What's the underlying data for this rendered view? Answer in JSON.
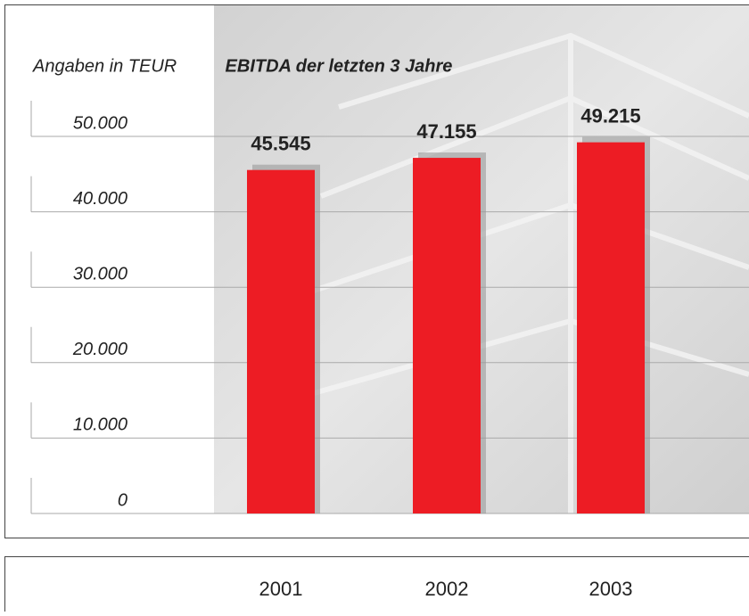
{
  "chart_data": {
    "type": "bar",
    "title": "EBITDA der letzten 3 Jahre",
    "unit_label": "Angaben in TEUR",
    "categories": [
      "2001",
      "2002",
      "2003"
    ],
    "values": [
      45545,
      47155,
      49215
    ],
    "value_labels": [
      "45.545",
      "47.155",
      "49.215"
    ],
    "color": "#ed1c24",
    "ylim": [
      0,
      50000
    ],
    "yticks": [
      0,
      {
        "value": 10000,
        "label": "10.000"
      },
      {
        "value": 20000,
        "label": "20.000"
      },
      {
        "value": 30000,
        "label": "30.000"
      },
      {
        "value": 40000,
        "label": "40.000"
      },
      {
        "value": 50000,
        "label": "50.000"
      }
    ],
    "grid": true
  }
}
